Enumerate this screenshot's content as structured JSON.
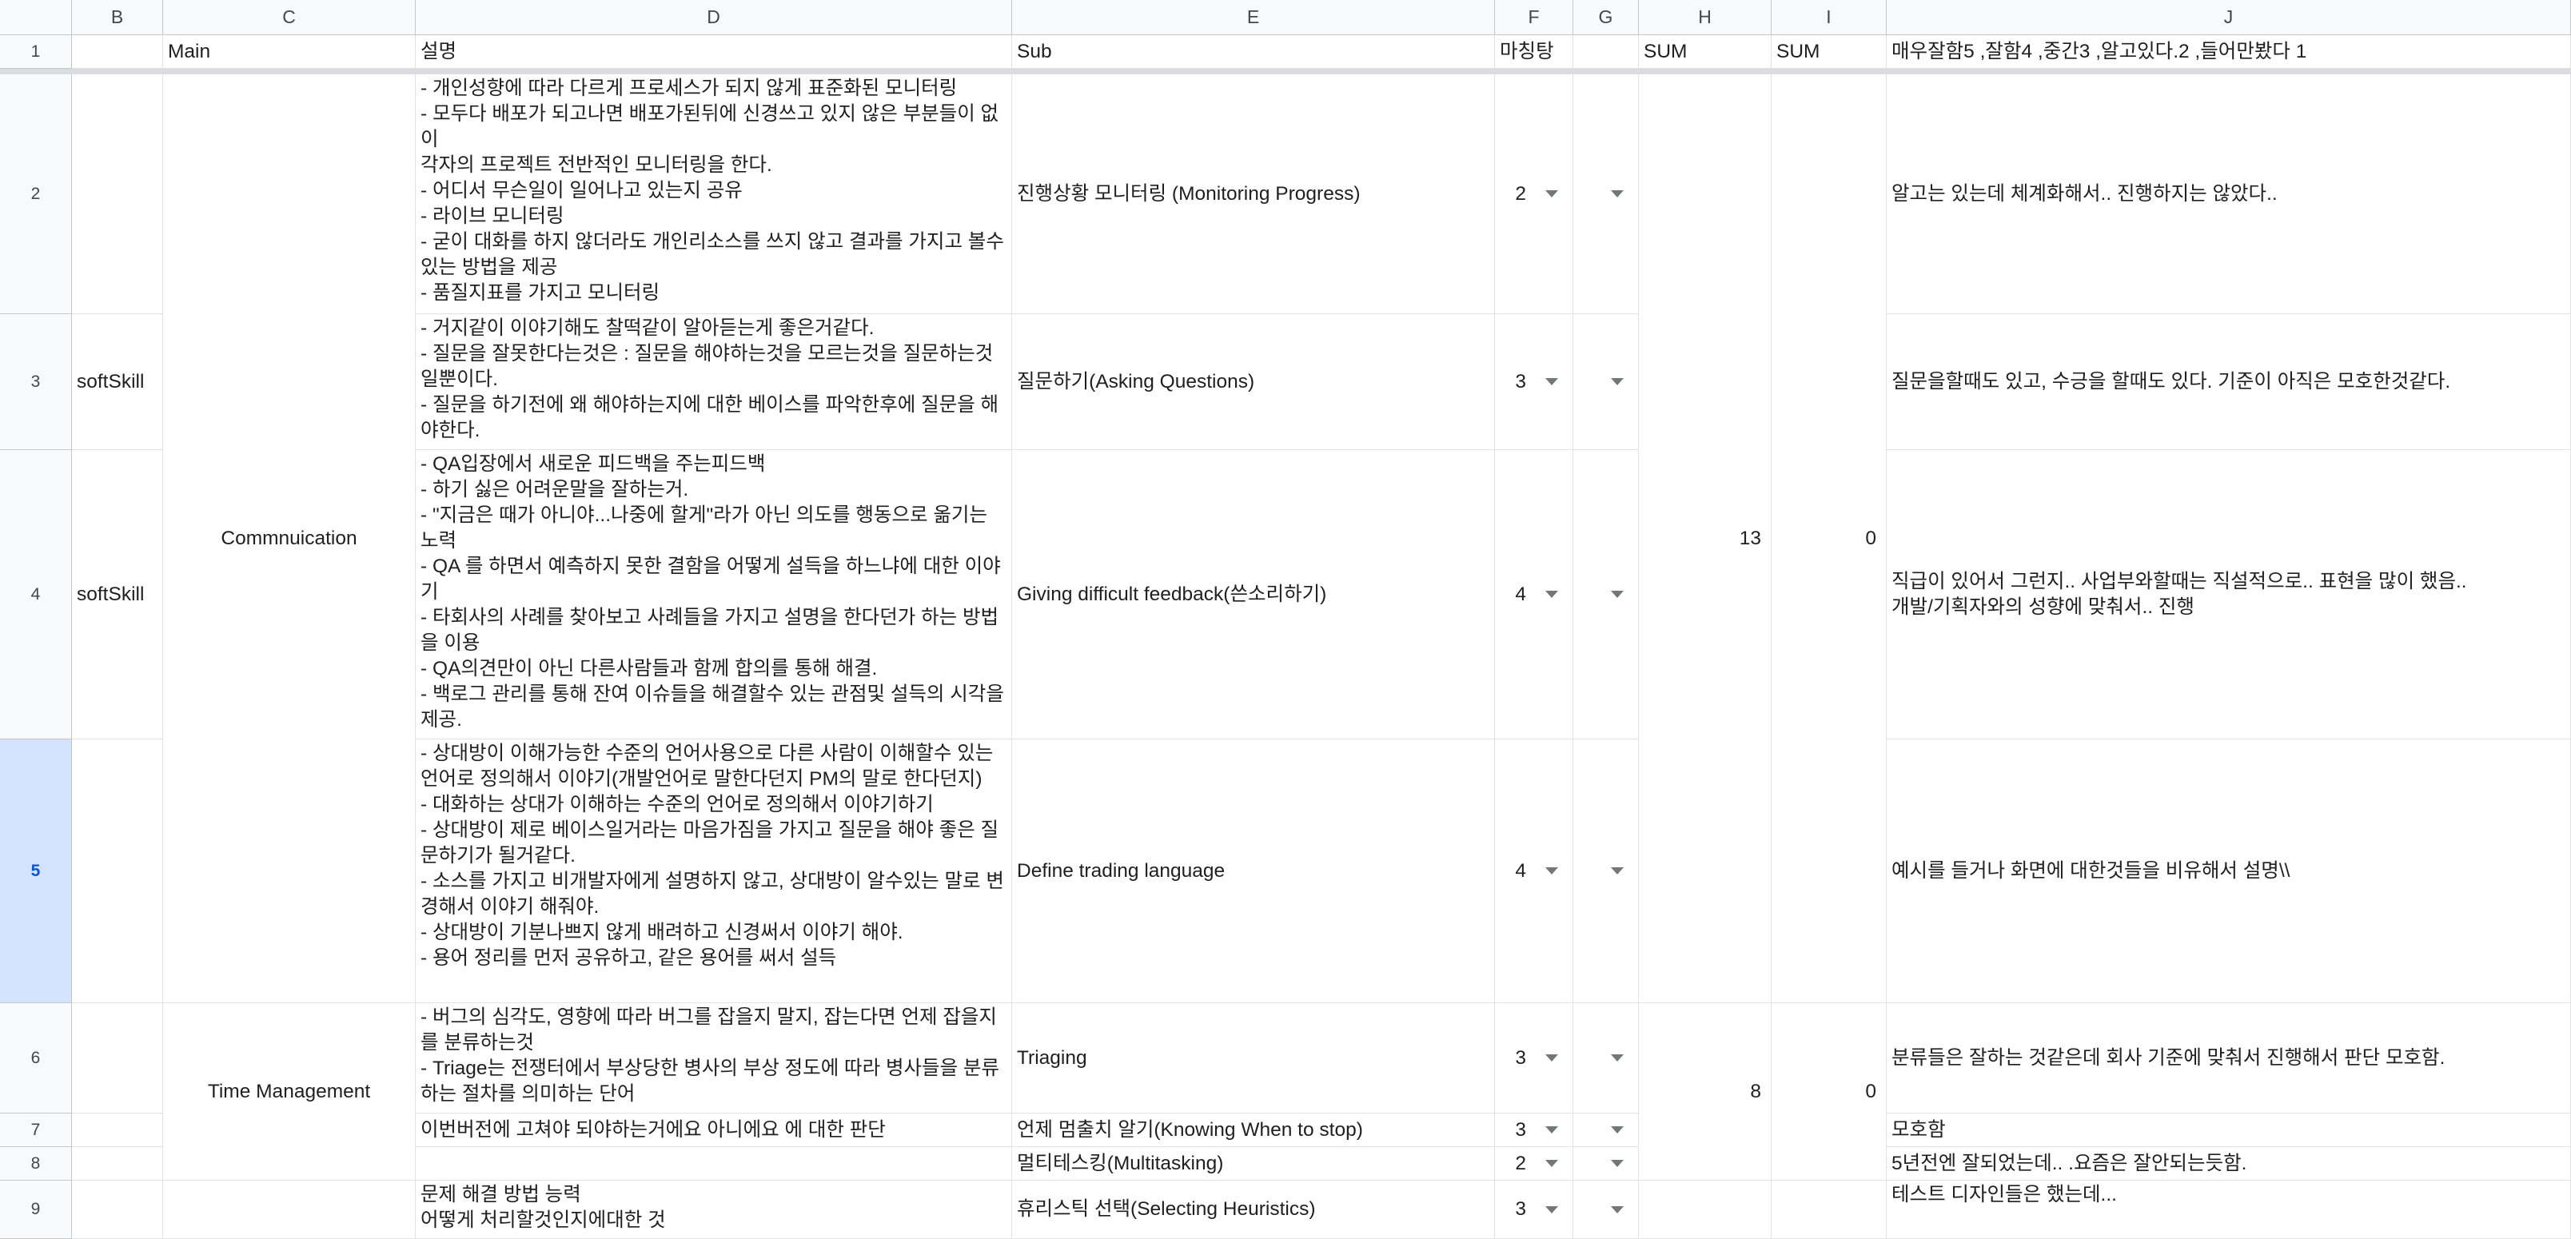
{
  "columns": [
    "B",
    "C",
    "D",
    "E",
    "F",
    "G",
    "H",
    "I",
    "J"
  ],
  "rows": [
    "1",
    "2",
    "3",
    "4",
    "5",
    "6",
    "7",
    "8",
    "9"
  ],
  "header": {
    "main": "Main",
    "desc": "설명",
    "sub": "Sub",
    "rating": "마칭탕",
    "sum1": "SUM",
    "sum2": "SUM",
    "scale": "매우잘함5 ,잘함4 ,중간3 ,알고있다.2 ,들어만봤다 1"
  },
  "cells": {
    "b3": "softSkill",
    "b4": "softSkill",
    "c_comm": "Commnuication",
    "c_time": "Time Management",
    "d2": "- 개인성향에 따라 다르게 프로세스가 되지 않게 표준화된 모니터링\n- 모두다 배포가 되고나면 배포가된뒤에 신경쓰고 있지 않은 부분들이 없이\n각자의 프로젝트 전반적인 모니터링을 한다.\n- 어디서 무슨일이 일어나고 있는지 공유\n- 라이브 모니터링\n- 굳이 대화를 하지 않더라도 개인리소스를 쓰지 않고 결과를 가지고 볼수 있는 방법을 제공\n- 품질지표를 가지고 모니터링",
    "d3": "- 거지같이 이야기해도 찰떡같이 알아듣는게 좋은거같다.\n- 질문을 잘못한다는것은 : 질문을 해야하는것을 모르는것을 질문하는것일뿐이다.\n- 질문을 하기전에 왜 해야하는지에 대한 베이스를 파악한후에 질문을 해야한다.",
    "d4": "- QA입장에서 새로운 피드백을 주는피드백\n- 하기 싫은 어려운말을 잘하는거.\n- \"지금은 때가 아니야...나중에 할게\"라가 아닌 의도를 행동으로 옮기는 노력\n- QA 를 하면서 예측하지 못한 결함을 어떻게 설득을 하느냐에 대한 이야기\n- 타회사의 사례를 찾아보고 사례들을 가지고 설명을 한다던가 하는 방법을 이용\n- QA의견만이 아닌 다른사람들과 함께 합의를 통해 해결.\n- 백로그 관리를 통해 잔여 이슈들을 해결할수 있는 관점및 설득의 시각을 제공.",
    "d5": "- 상대방이 이해가능한 수준의 언어사용으로 다른 사람이 이해할수 있는 언어로 정의해서 이야기(개발언어로 말한다던지 PM의 말로 한다던지)\n- 대화하는 상대가 이해하는 수준의 언어로 정의해서 이야기하기\n- 상대방이 제로 베이스일거라는 마음가짐을 가지고 질문을 해야 좋은 질문하기가 될거같다.\n- 소스를 가지고 비개발자에게 설명하지 않고, 상대방이 알수있는 말로 변경해서 이야기 해줘야.\n- 상대방이 기분나쁘지 않게 배려하고 신경써서 이야기 해야.\n- 용어 정리를 먼저 공유하고, 같은 용어를 써서 설득",
    "d6": "- 버그의 심각도, 영향에 따라 버그를 잡을지 말지, 잡는다면 언제 잡을지를 분류하는것\n- Triage는 전쟁터에서 부상당한 병사의 부상 정도에 따라 병사들을 분류하는 절차를 의미하는 단어",
    "d7": "이번버전에 고쳐야 되야하는거에요 아니에요 에 대한 판단",
    "d9": "문제 해결 방법 능력\n어떻게 처리할것인지에대한 것",
    "e2": "진행상황 모니터링 (Monitoring Progress)",
    "e3": "질문하기(Asking Questions)",
    "e4": "Giving difficult feedback(쓴소리하기)",
    "e5": "Define trading language",
    "e6": "Triaging",
    "e7": "언제 멈출치 알기(Knowing When to stop)",
    "e8": "멀티테스킹(Multitasking)",
    "e9": "휴리스틱 선택(Selecting Heuristics)",
    "f2": "2",
    "f3": "3",
    "f4": "4",
    "f5": "4",
    "f6": "3",
    "f7": "3",
    "f8": "2",
    "f9": "3",
    "h_comm": "13",
    "i_comm": "0",
    "h_time": "8",
    "i_time": "0",
    "j2": "알고는 있는데 체계화해서.. 진행하지는 않았다..",
    "j3": "질문을할때도 있고, 수긍을 할때도 있다. 기준이 아직은 모호한것같다.",
    "j4": "직급이 있어서 그런지.. 사업부와할때는 직설적으로.. 표현을 많이 했음..\n개발/기획자와의 성향에 맞춰서.. 진행",
    "j5": "예시를 들거나 화면에 대한것들을 비유해서 설명\\\\",
    "j6": "분류들은 잘하는 것같은데 회사 기준에 맞춰서 진행해서 판단 모호함.",
    "j7": "모호함",
    "j8": "5년전엔 잘되었는데.. .요즘은 잘안되는듯함.",
    "j9": "테스트 디자인들은 했는데..."
  }
}
